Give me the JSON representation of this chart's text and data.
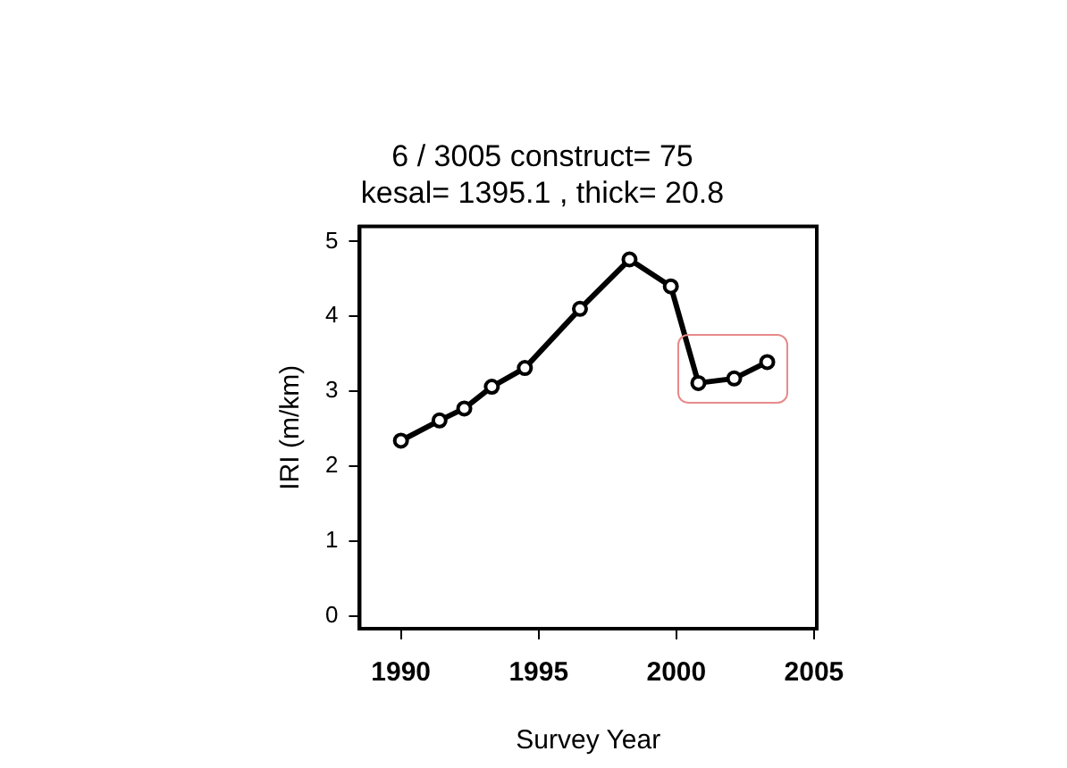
{
  "chart_data": {
    "type": "line",
    "title": [
      "6 / 3005 construct= 75",
      "kesal= 1395.1 , thick= 20.8"
    ],
    "xlabel": "Survey Year",
    "ylabel": "IRI (m/km)",
    "x": [
      1990,
      1991.4,
      1992.3,
      1993.3,
      1994.5,
      1996.5,
      1998.3,
      1999.8,
      2000.8,
      2002.1,
      2003.3
    ],
    "series": [
      {
        "color": "#000000",
        "values": [
          2.34,
          2.61,
          2.77,
          3.06,
          3.31,
          4.1,
          4.76,
          4.4,
          3.11,
          3.17,
          3.39
        ]
      }
    ],
    "xlim": [
      1988.5,
      2005.1
    ],
    "xticks": [
      1990,
      1995,
      2000,
      2005
    ],
    "ylim": [
      -0.17,
      5.2
    ],
    "yticks": [
      0,
      1,
      2,
      3,
      4,
      5
    ],
    "grid": false,
    "legend": false,
    "marker": "circle",
    "line_style": "solid"
  }
}
